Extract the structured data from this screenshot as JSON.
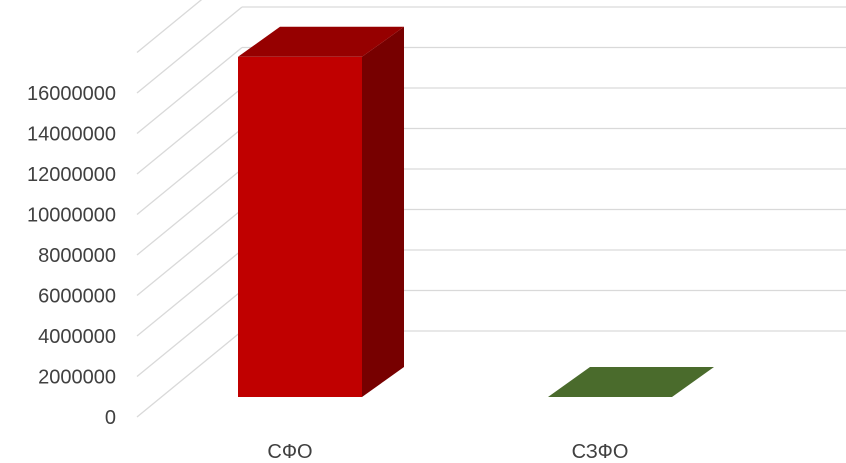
{
  "chart_data": {
    "type": "bar",
    "categories": [
      "СФО",
      "СЗФО"
    ],
    "values": [
      16800000,
      0
    ],
    "colors": [
      "#C00000",
      "#4A6B2C"
    ],
    "title": "",
    "xlabel": "",
    "ylabel": "",
    "ylim": [
      0,
      16000000
    ],
    "yticks": [
      "0",
      "2000000",
      "4000000",
      "6000000",
      "8000000",
      "10000000",
      "12000000",
      "14000000",
      "16000000"
    ],
    "grid": true,
    "legend": "none",
    "style": "3d-column"
  }
}
